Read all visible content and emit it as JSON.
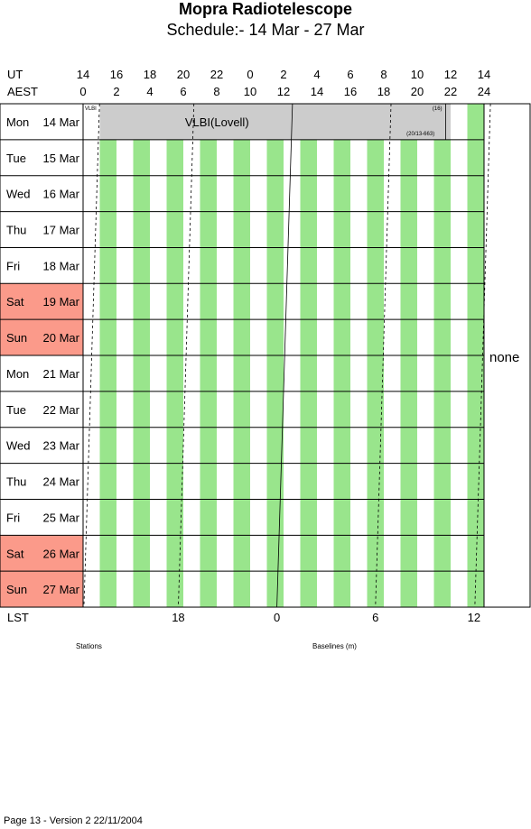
{
  "title": "Mopra Radiotelescope",
  "subtitle": "Schedule:- 14 Mar - 27 Mar",
  "footer": "Page 13 - Version 2  22/11/2004",
  "chart_data": {
    "type": "table",
    "row_label_ut": "UT",
    "row_label_aest": "AEST",
    "row_label_lst": "LST",
    "ut_ticks": [
      "14",
      "16",
      "18",
      "20",
      "22",
      "0",
      "2",
      "4",
      "6",
      "8",
      "10",
      "12",
      "14"
    ],
    "aest_ticks": [
      "0",
      "2",
      "4",
      "6",
      "8",
      "10",
      "12",
      "14",
      "16",
      "18",
      "20",
      "22",
      "24"
    ],
    "lst_ticks": [
      {
        "label": "18",
        "aest": 5.7
      },
      {
        "label": "0",
        "aest": 11.6
      },
      {
        "label": "6",
        "aest": 17.5
      },
      {
        "label": "12",
        "aest": 23.4
      }
    ],
    "days": [
      {
        "dow": "Mon",
        "date": "14 Mar",
        "weekend": false
      },
      {
        "dow": "Tue",
        "date": "15 Mar",
        "weekend": false
      },
      {
        "dow": "Wed",
        "date": "16 Mar",
        "weekend": false
      },
      {
        "dow": "Thu",
        "date": "17 Mar",
        "weekend": false
      },
      {
        "dow": "Fri",
        "date": "18 Mar",
        "weekend": false
      },
      {
        "dow": "Sat",
        "date": "19 Mar",
        "weekend": true
      },
      {
        "dow": "Sun",
        "date": "20 Mar",
        "weekend": true
      },
      {
        "dow": "Mon",
        "date": "21 Mar",
        "weekend": false
      },
      {
        "dow": "Tue",
        "date": "22 Mar",
        "weekend": false
      },
      {
        "dow": "Wed",
        "date": "23 Mar",
        "weekend": false
      },
      {
        "dow": "Thu",
        "date": "24 Mar",
        "weekend": false
      },
      {
        "dow": "Fri",
        "date": "25 Mar",
        "weekend": false
      },
      {
        "dow": "Sat",
        "date": "26 Mar",
        "weekend": true
      },
      {
        "dow": "Sun",
        "date": "27 Mar",
        "weekend": true
      }
    ],
    "stripe_aest_ranges": [
      [
        1,
        2
      ],
      [
        3,
        4
      ],
      [
        5,
        6
      ],
      [
        7,
        8
      ],
      [
        9,
        10
      ],
      [
        11,
        12
      ],
      [
        13,
        14
      ],
      [
        15,
        16
      ],
      [
        17,
        18
      ],
      [
        19,
        20
      ],
      [
        21,
        22
      ],
      [
        23,
        24
      ]
    ],
    "vlbi_block": {
      "day_index": 0,
      "aest_start": 1,
      "aest_end": 22,
      "label": "VLBI(Lovell)"
    },
    "vlbi_small_label": "VLBI",
    "vlbi_note_1": "(16)",
    "vlbi_note_2": "(20/13-663)",
    "baselines": "none",
    "bottom_labels": {
      "stations": "Stations",
      "baselines": "Baselines (m)"
    },
    "colors": {
      "stripe": "#99e58c",
      "weekend": "#fb9a8a",
      "vlbi": "#cccccc"
    }
  }
}
